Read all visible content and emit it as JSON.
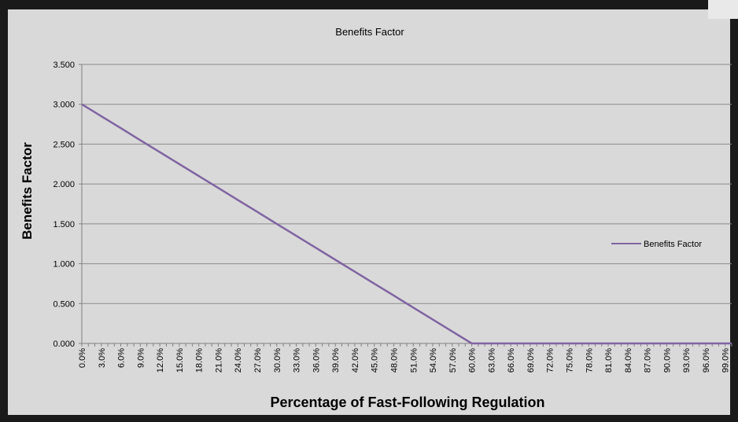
{
  "chart_data": {
    "type": "line",
    "title": "Benefits Factor",
    "xlabel": "Percentage of Fast-Following Regulation",
    "ylabel": "Benefits Factor",
    "x_unit": "%",
    "x_range": [
      0,
      100
    ],
    "x_tick_labels": [
      "0.0%",
      "3.0%",
      "6.0%",
      "9.0%",
      "12.0%",
      "15.0%",
      "18.0%",
      "21.0%",
      "24.0%",
      "27.0%",
      "30.0%",
      "33.0%",
      "36.0%",
      "39.0%",
      "42.0%",
      "45.0%",
      "48.0%",
      "51.0%",
      "54.0%",
      "57.0%",
      "60.0%",
      "63.0%",
      "66.0%",
      "69.0%",
      "72.0%",
      "75.0%",
      "78.0%",
      "81.0%",
      "84.0%",
      "87.0%",
      "90.0%",
      "93.0%",
      "96.0%",
      "99.0%"
    ],
    "ylim": [
      0,
      3.5
    ],
    "y_tick_labels": [
      "0.000",
      "0.500",
      "1.000",
      "1.500",
      "2.000",
      "2.500",
      "3.000",
      "3.500"
    ],
    "grid": true,
    "legend_position": "right",
    "series": [
      {
        "name": "Benefits Factor",
        "color": "#8064a2",
        "x": [
          0,
          3,
          6,
          9,
          12,
          15,
          18,
          21,
          24,
          27,
          30,
          33,
          36,
          39,
          42,
          45,
          48,
          51,
          54,
          57,
          60,
          61.5,
          63,
          66,
          69,
          72,
          75,
          78,
          81,
          84,
          87,
          90,
          93,
          96,
          99,
          100
        ],
        "values": [
          3.0,
          2.85,
          2.7,
          2.55,
          2.4,
          2.25,
          2.1,
          1.95,
          1.8,
          1.65,
          1.5,
          1.35,
          1.2,
          1.05,
          0.9,
          0.75,
          0.6,
          0.45,
          0.3,
          0.15,
          0.0,
          0.0,
          0.0,
          0.0,
          0.0,
          0.0,
          0.0,
          0.0,
          0.0,
          0.0,
          0.0,
          0.0,
          0.0,
          0.0,
          0.0,
          0.0
        ]
      }
    ]
  }
}
